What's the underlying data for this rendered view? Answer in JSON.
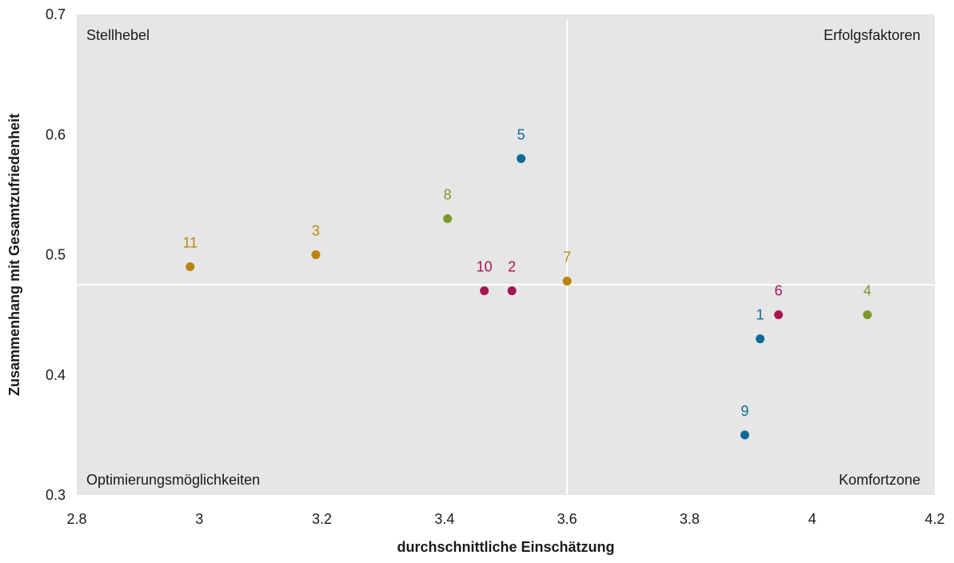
{
  "chart_data": {
    "type": "scatter",
    "xlabel": "durchschnittliche Einschätzung",
    "ylabel": "Zusammenhang mit Gesamtzufriedenheit",
    "xlim": [
      2.8,
      4.2
    ],
    "ylim": [
      0.3,
      0.7
    ],
    "xticks": [
      "2.8",
      "3",
      "3.2",
      "3.4",
      "3.6",
      "3.8",
      "4",
      "4.2"
    ],
    "yticks": [
      "0.3",
      "0.4",
      "0.5",
      "0.6",
      "0.7"
    ],
    "crosshair": {
      "x": 3.6,
      "y": 0.475
    },
    "grid": false,
    "quadrants": {
      "top_left": "Stellhebel",
      "top_right": "Erfolgsfaktoren",
      "bottom_left": "Optimierungsmöglichkeiten",
      "bottom_right": "Komfortzone"
    },
    "colors": {
      "plot_background": "#e6e6e6",
      "crosshair": "#ffffff",
      "blue": "#0d6a96",
      "green": "#7a9a28",
      "gold": "#b8860b",
      "crimson": "#a8124e"
    },
    "points": [
      {
        "label": "1",
        "x": 3.915,
        "y": 0.43,
        "color": "blue"
      },
      {
        "label": "2",
        "x": 3.51,
        "y": 0.47,
        "color": "crimson"
      },
      {
        "label": "3",
        "x": 3.19,
        "y": 0.5,
        "color": "gold"
      },
      {
        "label": "4",
        "x": 4.09,
        "y": 0.45,
        "color": "green"
      },
      {
        "label": "5",
        "x": 3.525,
        "y": 0.58,
        "color": "blue"
      },
      {
        "label": "6",
        "x": 3.945,
        "y": 0.45,
        "color": "crimson"
      },
      {
        "label": "7",
        "x": 3.6,
        "y": 0.478,
        "color": "gold"
      },
      {
        "label": "8",
        "x": 3.405,
        "y": 0.53,
        "color": "green"
      },
      {
        "label": "9",
        "x": 3.89,
        "y": 0.35,
        "color": "blue"
      },
      {
        "label": "10",
        "x": 3.465,
        "y": 0.47,
        "color": "crimson"
      },
      {
        "label": "11",
        "x": 2.985,
        "y": 0.49,
        "color": "gold"
      }
    ]
  }
}
